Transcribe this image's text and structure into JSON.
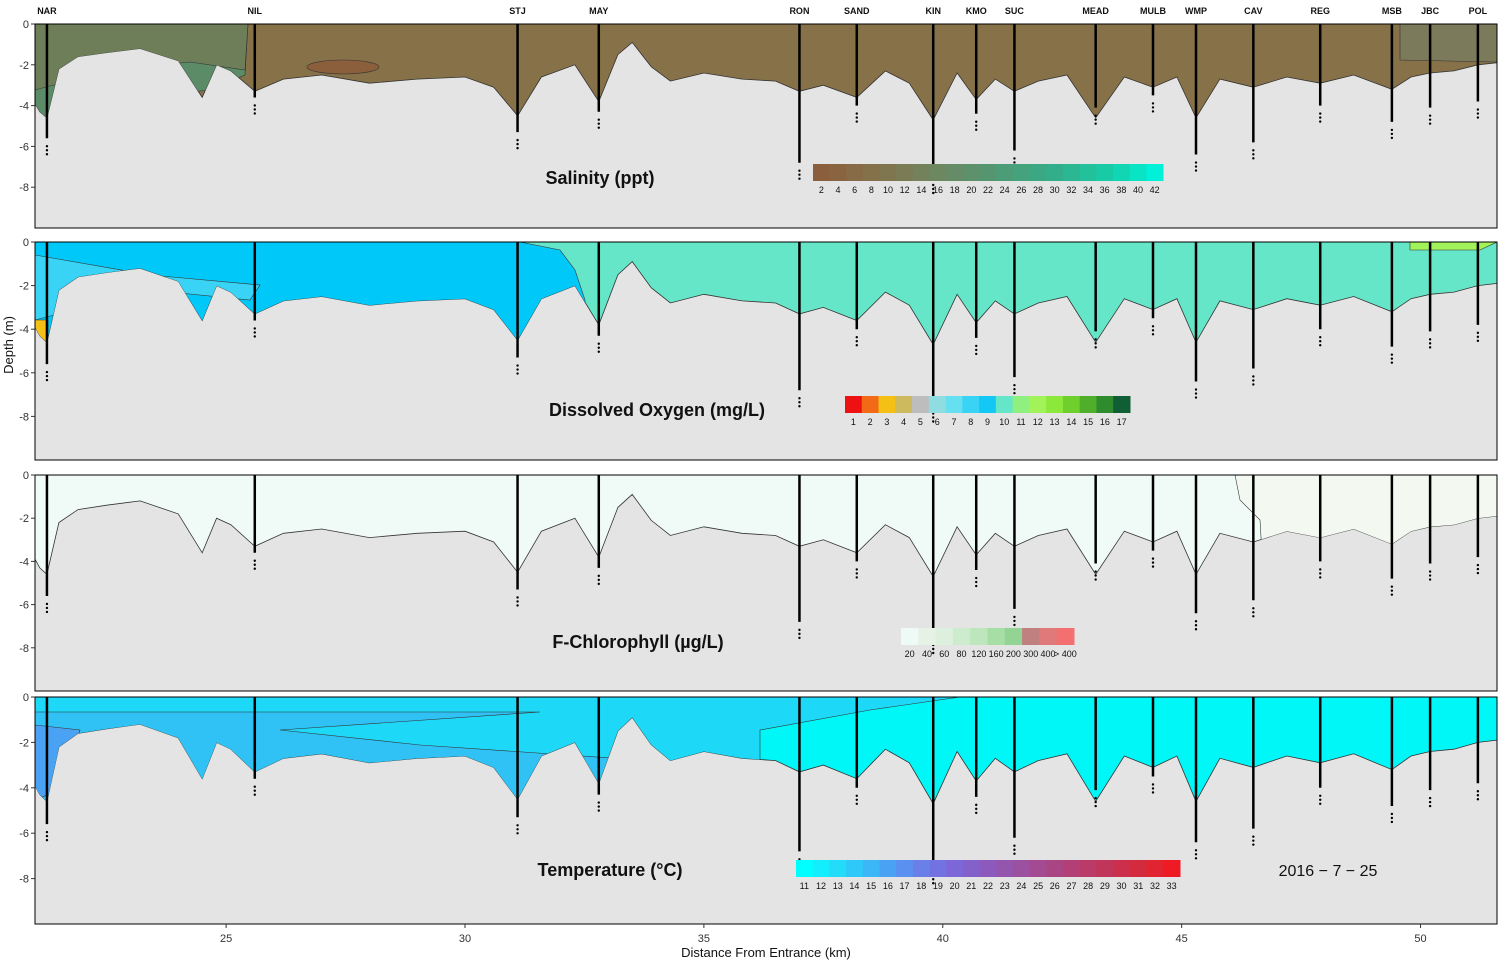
{
  "chart_data": {
    "type": "area",
    "date_label": "2016 − 7 − 25",
    "xlabel": "Distance From Entrance (km)",
    "ylabel": "Depth (m)",
    "xlim": [
      21,
      51.6
    ],
    "ylim": [
      -10,
      0
    ],
    "x_ticks": [
      25,
      30,
      35,
      40,
      45,
      50
    ],
    "y_ticks": [
      0,
      -2,
      -4,
      -6,
      -8
    ],
    "stations": [
      {
        "name": "NAR",
        "x": 21.25,
        "depth": -5.6
      },
      {
        "name": "NIL",
        "x": 25.6,
        "depth": -3.6
      },
      {
        "name": "STJ",
        "x": 31.1,
        "depth": -5.3
      },
      {
        "name": "MAY",
        "x": 32.8,
        "depth": -4.3
      },
      {
        "name": "RON",
        "x": 37.0,
        "depth": -6.8
      },
      {
        "name": "SAND",
        "x": 38.2,
        "depth": -4.0
      },
      {
        "name": "KIN",
        "x": 39.8,
        "depth": -7.5
      },
      {
        "name": "KMO",
        "x": 40.7,
        "depth": -4.4
      },
      {
        "name": "SUC",
        "x": 41.5,
        "depth": -6.2
      },
      {
        "name": "MEAD",
        "x": 43.2,
        "depth": -4.1
      },
      {
        "name": "MULB",
        "x": 44.4,
        "depth": -3.5
      },
      {
        "name": "WMP",
        "x": 45.3,
        "depth": -6.4
      },
      {
        "name": "CAV",
        "x": 46.5,
        "depth": -5.8
      },
      {
        "name": "REG",
        "x": 47.9,
        "depth": -4.0
      },
      {
        "name": "MSB",
        "x": 49.4,
        "depth": -4.8
      },
      {
        "name": "JBC",
        "x": 50.2,
        "depth": -4.1
      },
      {
        "name": "POL",
        "x": 51.2,
        "depth": -3.8
      }
    ],
    "bottom_profile": {
      "x": [
        21,
        21.1,
        21.25,
        21.5,
        21.9,
        22.5,
        23.2,
        24.0,
        24.5,
        24.8,
        25.1,
        25.6,
        26.2,
        27.0,
        28.0,
        29.0,
        30.0,
        30.6,
        31.1,
        31.6,
        32.3,
        32.8,
        33.2,
        33.5,
        33.9,
        34.3,
        35.0,
        35.8,
        36.5,
        37.0,
        37.5,
        38.2,
        38.8,
        39.3,
        39.8,
        40.3,
        40.7,
        41.1,
        41.5,
        42.0,
        42.6,
        43.2,
        43.8,
        44.4,
        44.9,
        45.3,
        45.8,
        46.5,
        47.2,
        47.9,
        48.6,
        49.4,
        49.8,
        50.2,
        50.7,
        51.2,
        51.6
      ],
      "depth": [
        -3.9,
        -4.3,
        -4.6,
        -2.2,
        -1.6,
        -1.4,
        -1.2,
        -1.8,
        -3.6,
        -2.0,
        -2.3,
        -3.3,
        -2.7,
        -2.5,
        -2.9,
        -2.7,
        -2.6,
        -3.1,
        -4.5,
        -2.6,
        -2.0,
        -3.8,
        -1.5,
        -0.9,
        -2.1,
        -2.8,
        -2.4,
        -2.7,
        -2.8,
        -3.3,
        -3.0,
        -3.6,
        -2.3,
        -2.9,
        -4.7,
        -2.4,
        -3.7,
        -2.7,
        -3.3,
        -2.8,
        -2.5,
        -4.6,
        -2.6,
        -3.1,
        -2.6,
        -4.6,
        -2.7,
        -3.1,
        -2.6,
        -2.9,
        -2.5,
        -3.2,
        -2.6,
        -2.4,
        -2.3,
        -2.0,
        -1.9
      ]
    },
    "panels": [
      {
        "title": "Salinity (ppt)",
        "legend_ticks": [
          "2",
          "4",
          "6",
          "8",
          "10",
          "12",
          "14",
          "16",
          "18",
          "20",
          "22",
          "24",
          "26",
          "28",
          "30",
          "32",
          "34",
          "36",
          "38",
          "40",
          "42"
        ],
        "legend_colors": [
          "#8b5e3c",
          "#8a6440",
          "#876b46",
          "#84714a",
          "#7f7650",
          "#7a7c55",
          "#74825b",
          "#6d8760",
          "#658c66",
          "#5d916c",
          "#559671",
          "#4c9c77",
          "#44a27d",
          "#3ba883",
          "#32af8a",
          "#2ab792",
          "#22c09b",
          "#19caa6",
          "#10d6b3",
          "#08e4c4",
          "#00f0d8"
        ]
      },
      {
        "title": "Dissolved Oxygen (mg/L)",
        "legend_ticks": [
          "1",
          "2",
          "3",
          "4",
          "5",
          "6",
          "7",
          "8",
          "9",
          "10",
          "11",
          "12",
          "13",
          "14",
          "15",
          "16",
          "17"
        ],
        "legend_colors": [
          "#ee1111",
          "#f26a16",
          "#f5c015",
          "#cdb95e",
          "#bdbdbd",
          "#8fdde0",
          "#66e0f0",
          "#39d4f5",
          "#14c8f5",
          "#66e6c8",
          "#8ff080",
          "#a2f25a",
          "#8ce83a",
          "#6fcf2d",
          "#4fae2a",
          "#2e8b2e",
          "#0f5e34"
        ]
      },
      {
        "title": "F-Chlorophyll (µg/L)",
        "legend_ticks": [
          "20",
          "40",
          "60",
          "80",
          "120",
          "160",
          "200",
          "300",
          "400",
          "> 400"
        ],
        "legend_colors": [
          "#eefaf6",
          "#e6f2e6",
          "#ddf0dd",
          "#cdeccd",
          "#bde6bd",
          "#a6dea6",
          "#93d393",
          "#c08080",
          "#e07a7a",
          "#f47070"
        ]
      },
      {
        "title": "Temperature (°C)",
        "legend_ticks": [
          "11",
          "12",
          "13",
          "14",
          "15",
          "16",
          "17",
          "18",
          "19",
          "20",
          "21",
          "22",
          "23",
          "24",
          "25",
          "26",
          "27",
          "28",
          "29",
          "30",
          "31",
          "32",
          "33"
        ],
        "legend_colors": [
          "#00ffff",
          "#12eefc",
          "#22dcfa",
          "#2ec9f8",
          "#3bb6f6",
          "#4aa2f4",
          "#5a90f0",
          "#6a80e8",
          "#7372e2",
          "#7c66d8",
          "#8460ca",
          "#8c5abd",
          "#9455ae",
          "#9b50a0",
          "#a34a92",
          "#aa4584",
          "#b23f76",
          "#ba3a68",
          "#c2355a",
          "#cb2f4c",
          "#d42a3e",
          "#e02430",
          "#ee1b24"
        ]
      }
    ]
  }
}
